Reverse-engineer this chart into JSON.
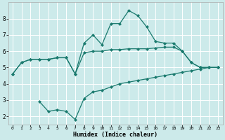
{
  "xlabel": "Humidex (Indice chaleur)",
  "bg_color": "#cceaea",
  "grid_color": "#ffffff",
  "line_color": "#1a7a6e",
  "xlim": [
    -0.5,
    23.5
  ],
  "ylim": [
    1.5,
    9.0
  ],
  "yticks": [
    2,
    3,
    4,
    5,
    6,
    7,
    8
  ],
  "xticks": [
    0,
    1,
    2,
    3,
    4,
    5,
    6,
    7,
    8,
    9,
    10,
    11,
    12,
    13,
    14,
    15,
    16,
    17,
    18,
    19,
    20,
    21,
    22,
    23
  ],
  "line1_x": [
    0,
    1,
    2,
    3,
    4,
    5,
    6,
    7,
    8,
    9,
    10,
    11,
    12,
    13,
    14,
    15,
    16,
    17,
    18,
    19,
    20,
    21,
    22,
    23
  ],
  "line1_y": [
    4.6,
    5.3,
    5.5,
    5.5,
    5.5,
    5.6,
    5.6,
    4.6,
    5.9,
    6.0,
    6.0,
    6.1,
    6.1,
    6.15,
    6.15,
    6.15,
    6.2,
    6.25,
    6.25,
    6.0,
    5.3,
    5.0,
    5.0,
    5.0
  ],
  "line2_x": [
    0,
    1,
    2,
    3,
    4,
    5,
    6,
    7,
    8,
    9,
    10,
    11,
    12,
    13,
    14,
    15,
    16,
    17,
    18,
    19,
    20,
    21,
    22,
    23
  ],
  "line2_y": [
    4.6,
    5.3,
    5.5,
    5.5,
    5.5,
    5.6,
    5.6,
    4.6,
    6.5,
    7.0,
    6.4,
    7.7,
    7.7,
    8.5,
    8.2,
    7.5,
    6.6,
    6.5,
    6.5,
    6.0,
    5.3,
    5.0,
    5.0,
    5.0
  ],
  "line3_x": [
    3,
    4,
    5,
    6,
    7,
    8,
    9,
    10,
    11,
    12,
    13,
    14,
    15,
    16,
    17,
    18,
    19,
    20,
    21,
    22,
    23
  ],
  "line3_y": [
    2.9,
    2.3,
    2.4,
    2.3,
    1.8,
    3.1,
    3.5,
    3.6,
    3.8,
    4.0,
    4.1,
    4.2,
    4.3,
    4.4,
    4.5,
    4.6,
    4.7,
    4.8,
    4.9,
    5.0,
    5.0
  ],
  "marker_size": 2.5,
  "linewidth": 0.9
}
